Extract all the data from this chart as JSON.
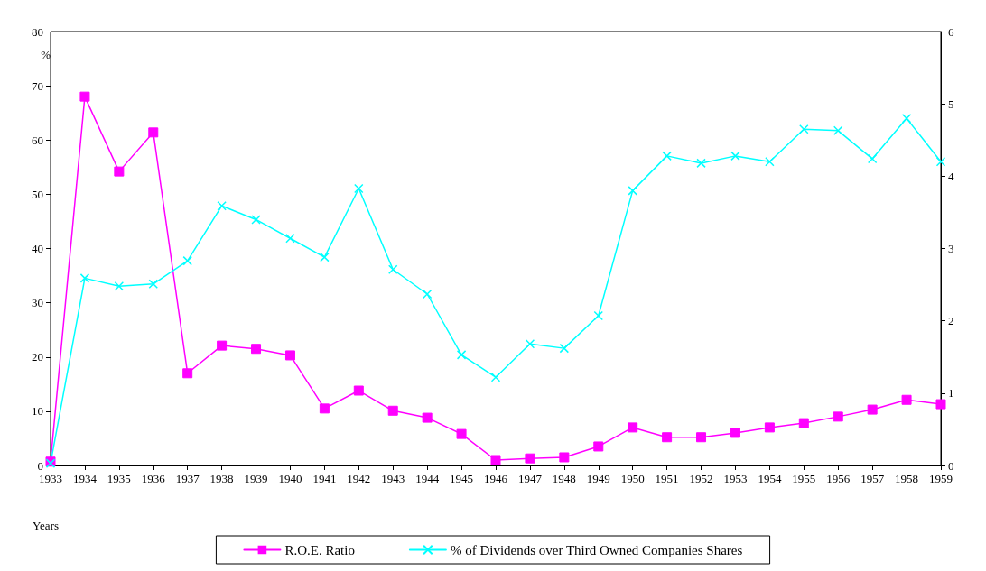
{
  "chart_data": {
    "type": "line",
    "xlabel": "Years",
    "ylabel": "%",
    "categories": [
      "1933",
      "1934",
      "1935",
      "1936",
      "1937",
      "1938",
      "1939",
      "1940",
      "1941",
      "1942",
      "1943",
      "1944",
      "1945",
      "1946",
      "1947",
      "1948",
      "1949",
      "1950",
      "1951",
      "1952",
      "1953",
      "1954",
      "1955",
      "1956",
      "1957",
      "1958",
      "1959"
    ],
    "series": [
      {
        "name": "R.O.E. Ratio",
        "color": "#ff00ff",
        "marker": "square",
        "values": [
          0.7,
          68,
          54.2,
          61.4,
          17,
          22.1,
          21.5,
          20.3,
          10.5,
          13.8,
          10.1,
          8.8,
          5.8,
          1.0,
          1.3,
          1.5,
          3.5,
          7.0,
          5.2,
          5.2,
          6.0,
          7.0,
          7.8,
          9.0,
          10.3,
          12.1,
          11.3
        ]
      },
      {
        "name": "% of Dividends over Third Owned Companies Shares",
        "color": "#00ffff",
        "marker": "cross",
        "axis": "y2",
        "values": [
          0.03,
          2.59,
          2.48,
          2.51,
          2.83,
          3.59,
          3.4,
          3.14,
          2.88,
          3.83,
          2.71,
          2.37,
          1.53,
          1.22,
          1.68,
          1.62,
          2.07,
          3.8,
          4.28,
          4.18,
          4.28,
          4.2,
          4.65,
          4.63,
          4.24,
          4.8,
          4.2
        ]
      }
    ],
    "ylim": [
      0,
      80
    ],
    "yticks": [
      0,
      10,
      20,
      30,
      40,
      50,
      60,
      70,
      80
    ],
    "y2lim": [
      0,
      6
    ],
    "y2ticks": [
      0,
      1,
      2,
      3,
      4,
      5,
      6
    ],
    "grid": false,
    "legend": "bottom"
  }
}
